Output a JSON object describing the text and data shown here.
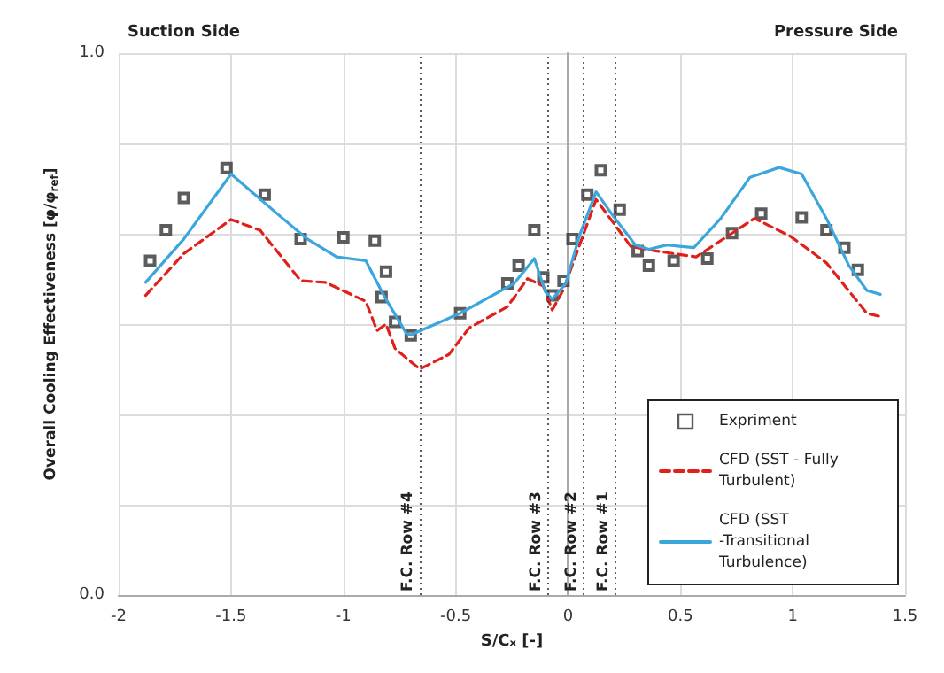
{
  "chart_data": {
    "type": "line",
    "xlabel": "S/Cₓ [-]",
    "ylabel": "Overall Cooling Effectiveness [φ/φ$_{ref}$]",
    "annotations": [
      "Suction Side",
      "Pressure Side"
    ],
    "xlim": [
      -2,
      1.5
    ],
    "xticks": [
      -2,
      -1.5,
      -1,
      -0.5,
      0,
      0.5,
      1,
      1.5
    ],
    "ylim": [
      0,
      1
    ],
    "yticks": [
      {
        "value": 0,
        "label": "0.0"
      },
      {
        "value": 0.1667,
        "label": null
      },
      {
        "value": 0.3333,
        "label": null
      },
      {
        "value": 0.5,
        "label": null
      },
      {
        "value": 0.6667,
        "label": null
      },
      {
        "value": 0.8333,
        "label": null
      },
      {
        "value": 1,
        "label": "1.0"
      }
    ],
    "grid": true,
    "legend": "bottom right",
    "ref_lines": [
      {
        "axis": "x",
        "value": -0.66,
        "label": "F.C. Row #4",
        "color": "#333333",
        "line_style": "dotted"
      },
      {
        "axis": "x",
        "value": -0.09,
        "label": "F.C. Row #3",
        "color": "#333333",
        "line_style": "dotted"
      },
      {
        "axis": "x",
        "value": 0.07,
        "label": "F.C. Row #2",
        "color": "#333333",
        "line_style": "dotted"
      },
      {
        "axis": "x",
        "value": 0.21,
        "label": "F.C. Row #1",
        "color": "#333333",
        "line_style": "dotted"
      }
    ],
    "series": [
      {
        "name": "Expriment",
        "type": "scatter",
        "marker": "square",
        "color": "#333333",
        "x": [
          -1.86,
          -1.79,
          -1.71,
          -1.52,
          -1.35,
          -1.19,
          -1.0,
          -0.86,
          -0.81,
          -0.83,
          -0.77,
          -0.7,
          -0.48,
          -0.27,
          -0.22,
          -0.15,
          -0.11,
          -0.07,
          -0.02,
          0.02,
          0.086,
          0.146,
          0.23,
          0.31,
          0.36,
          0.47,
          0.62,
          0.73,
          0.86,
          1.04,
          1.15,
          1.23,
          1.29
        ],
        "values": [
          0.617,
          0.673,
          0.733,
          0.788,
          0.739,
          0.657,
          0.66,
          0.654,
          0.597,
          0.55,
          0.504,
          0.479,
          0.52,
          0.575,
          0.608,
          0.673,
          0.586,
          0.553,
          0.58,
          0.657,
          0.739,
          0.784,
          0.711,
          0.635,
          0.608,
          0.617,
          0.621,
          0.668,
          0.704,
          0.697,
          0.673,
          0.641,
          0.6
        ]
      },
      {
        "name": "CFD (SST - Fully Turbulent)",
        "marker": "none",
        "line_style": "dashed",
        "color": "#e0201b",
        "x": [
          -1.88,
          -1.71,
          -1.5,
          -1.37,
          -1.19,
          -1.08,
          -0.9,
          -0.85,
          -0.81,
          -0.77,
          -0.66,
          -0.53,
          -0.44,
          -0.27,
          -0.18,
          -0.11,
          -0.07,
          -0.02,
          0.125,
          0.28,
          0.39,
          0.57,
          0.83,
          0.99,
          1.15,
          1.33,
          1.39
        ],
        "values": [
          0.553,
          0.63,
          0.693,
          0.673,
          0.58,
          0.577,
          0.542,
          0.488,
          0.5,
          0.455,
          0.417,
          0.444,
          0.493,
          0.532,
          0.584,
          0.57,
          0.526,
          0.564,
          0.73,
          0.643,
          0.635,
          0.624,
          0.695,
          0.662,
          0.613,
          0.52,
          0.514
        ]
      },
      {
        "name": "CFD (SST -Transitional Turbulence)",
        "marker": "none",
        "line_style": "solid",
        "color": "#3ba6dc",
        "x": [
          -1.88,
          -1.71,
          -1.5,
          -1.27,
          -1.16,
          -1.03,
          -0.9,
          -0.82,
          -0.72,
          -0.7,
          -0.48,
          -0.24,
          -0.15,
          -0.1,
          -0.07,
          -0.01,
          0.05,
          0.125,
          0.2,
          0.3,
          0.36,
          0.44,
          0.56,
          0.68,
          0.81,
          0.94,
          1.04,
          1.15,
          1.25,
          1.33,
          1.39
        ],
        "values": [
          0.577,
          0.657,
          0.777,
          0.695,
          0.657,
          0.624,
          0.617,
          0.553,
          0.483,
          0.48,
          0.52,
          0.575,
          0.621,
          0.559,
          0.546,
          0.575,
          0.662,
          0.744,
          0.7,
          0.646,
          0.638,
          0.646,
          0.641,
          0.695,
          0.771,
          0.789,
          0.777,
          0.695,
          0.608,
          0.562,
          0.555
        ]
      }
    ]
  }
}
